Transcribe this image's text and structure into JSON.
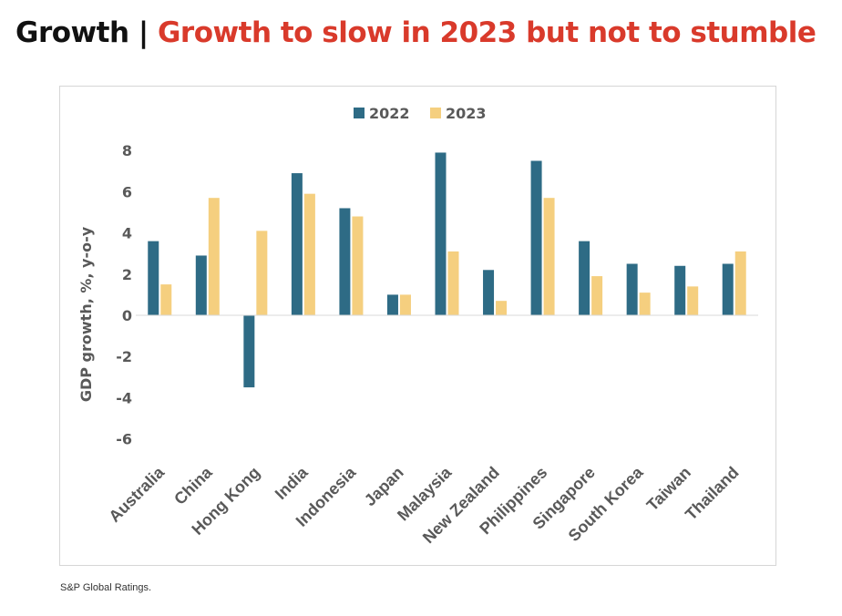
{
  "heading": {
    "prefix": "Growth",
    "separator": "|",
    "title": "Growth to slow in 2023 but not to stumble"
  },
  "source": "S&P Global  Ratings.",
  "colors": {
    "series_2022": "#2e6b85",
    "series_2023": "#f5cf7f",
    "title_accent": "#d93a2b",
    "axis_text": "#595959"
  },
  "chart_data": {
    "type": "bar",
    "categories": [
      "Australia",
      "China",
      "Hong Kong",
      "India",
      "Indonesia",
      "Japan",
      "Malaysia",
      "New Zealand",
      "Philippines",
      "Singapore",
      "South Korea",
      "Taiwan",
      "Thailand"
    ],
    "series": [
      {
        "name": "2022",
        "values": [
          3.6,
          2.9,
          -3.5,
          6.9,
          5.2,
          1.0,
          7.9,
          2.2,
          7.5,
          3.6,
          2.5,
          2.4,
          2.5
        ]
      },
      {
        "name": "2023",
        "values": [
          1.5,
          5.7,
          4.1,
          5.9,
          4.8,
          1.0,
          3.1,
          0.7,
          5.7,
          1.9,
          1.1,
          1.4,
          3.1
        ]
      }
    ],
    "ylabel": "GDP growth, %, y-o-y",
    "xlabel": "",
    "yticks": [
      8,
      6,
      4,
      2,
      0,
      -2,
      -4,
      -6
    ],
    "ylim": [
      -6,
      8
    ],
    "legend_position": "top-center",
    "grid": false
  }
}
